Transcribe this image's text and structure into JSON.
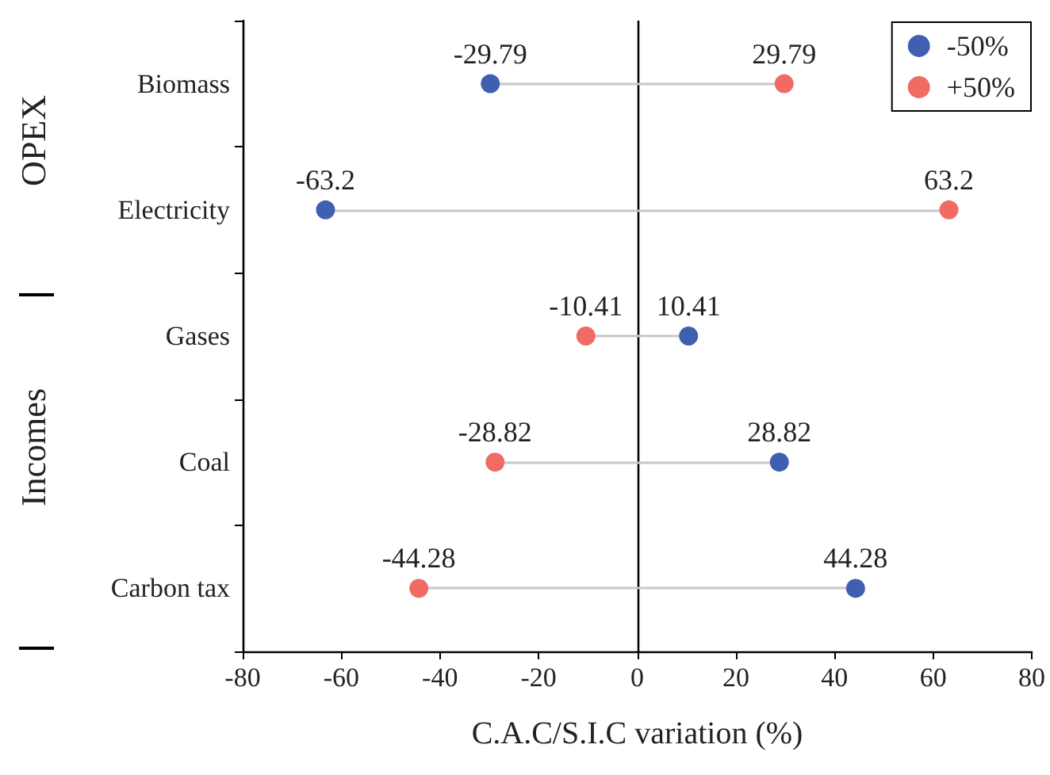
{
  "chart_data": {
    "type": "scatter",
    "orientation": "horizontal",
    "xlabel": "C.A.C/S.I.C variation (%)",
    "categories": [
      "Biomass",
      "Electricity",
      "Gases",
      "Coal",
      "Carbon tax"
    ],
    "series": [
      {
        "name": "-50%",
        "color": "#3f5fb0",
        "values": [
          -29.79,
          -63.2,
          10.41,
          28.82,
          44.28
        ]
      },
      {
        "name": "+50%",
        "color": "#ef6b63",
        "values": [
          29.79,
          63.2,
          -10.41,
          -28.82,
          -44.28
        ]
      }
    ],
    "xlim": [
      -80,
      80
    ],
    "xticks": [
      -80,
      -60,
      -40,
      -20,
      0,
      20,
      40,
      60,
      80
    ],
    "ref_lines": [
      {
        "axis": "x",
        "value": 0,
        "color": "#000000"
      }
    ],
    "annotations": [
      "OPEX",
      "Incomes"
    ],
    "data_labels": true,
    "legend": "top right",
    "marker": "circle",
    "grid": false
  }
}
